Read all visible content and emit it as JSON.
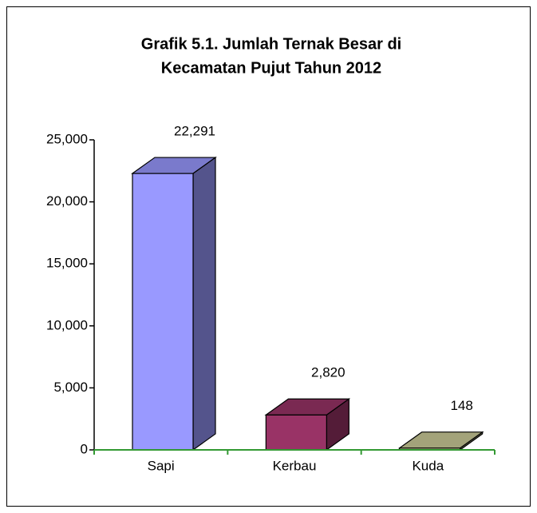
{
  "chart_data": {
    "type": "bar3d",
    "title": [
      "Grafik 5.1. Jumlah Ternak Besar di",
      "Kecamatan Pujut Tahun 2012"
    ],
    "categories": [
      "Sapi",
      "Kerbau",
      "Kuda"
    ],
    "values": [
      22291,
      2820,
      148
    ],
    "value_labels": [
      "22,291",
      "2,820",
      "148"
    ],
    "colors": [
      "#9999ff",
      "#993366",
      "#cccc99"
    ],
    "ylim": [
      0,
      25000
    ],
    "yticks": [
      0,
      {
        "value": 5000,
        "label": "5,000"
      },
      {
        "value": 10000,
        "label": "10,000"
      },
      {
        "value": 15000,
        "label": "15,000"
      },
      {
        "value": 20000,
        "label": "20,000"
      },
      {
        "value": 25000,
        "label": "25,000"
      }
    ]
  }
}
